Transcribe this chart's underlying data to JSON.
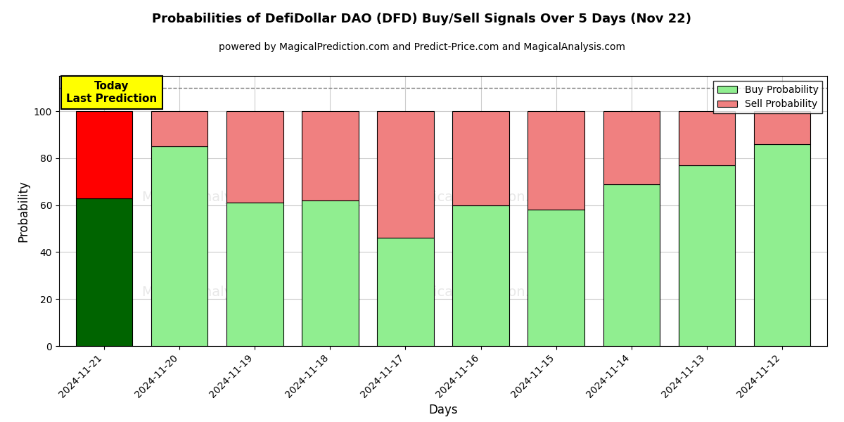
{
  "title": "Probabilities of DefiDollar DAO (DFD) Buy/Sell Signals Over 5 Days (Nov 22)",
  "subtitle": "powered by MagicalPrediction.com and Predict-Price.com and MagicalAnalysis.com",
  "xlabel": "Days",
  "ylabel": "Probability",
  "categories": [
    "2024-11-21",
    "2024-11-20",
    "2024-11-19",
    "2024-11-18",
    "2024-11-17",
    "2024-11-16",
    "2024-11-15",
    "2024-11-14",
    "2024-11-13",
    "2024-11-12"
  ],
  "buy_values": [
    63,
    85,
    61,
    62,
    46,
    60,
    58,
    69,
    77,
    86
  ],
  "sell_values": [
    37,
    15,
    39,
    38,
    54,
    40,
    42,
    31,
    23,
    14
  ],
  "buy_colors": [
    "#006400",
    "#90EE90",
    "#90EE90",
    "#90EE90",
    "#90EE90",
    "#90EE90",
    "#90EE90",
    "#90EE90",
    "#90EE90",
    "#90EE90"
  ],
  "sell_colors": [
    "#FF0000",
    "#F08080",
    "#F08080",
    "#F08080",
    "#F08080",
    "#F08080",
    "#F08080",
    "#F08080",
    "#F08080",
    "#F08080"
  ],
  "today_label": "Today\nLast Prediction",
  "legend_buy_color": "#90EE90",
  "legend_sell_color": "#F08080",
  "ylim": [
    0,
    115
  ],
  "yticks": [
    0,
    20,
    40,
    60,
    80,
    100
  ],
  "dashed_line_y": 110,
  "background_color": "#ffffff",
  "grid_color": "#cccccc",
  "bar_width": 0.75
}
